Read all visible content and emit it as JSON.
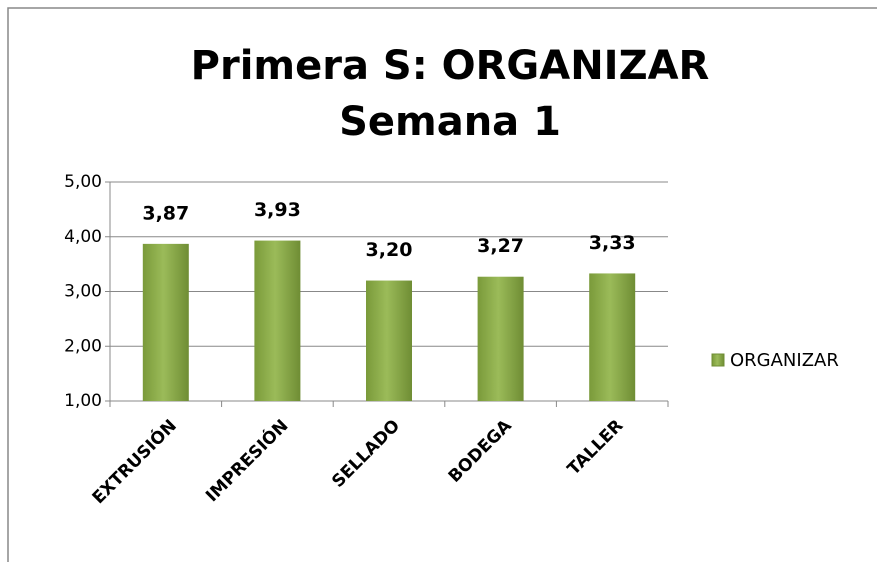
{
  "chart_data": {
    "type": "bar",
    "title": [
      "Primera S: ORGANIZAR",
      "Semana 1"
    ],
    "categories": [
      "EXTRUSIÓN",
      "IMPRESIÓN",
      "SELLADO",
      "BODEGA",
      "TALLER"
    ],
    "series": [
      {
        "name": "ORGANIZAR",
        "color": "#9bbb59",
        "values": [
          3.87,
          3.93,
          3.2,
          3.27,
          3.33
        ],
        "value_labels": [
          "3,87",
          "3,93",
          "3,20",
          "3,27",
          "3,33"
        ]
      }
    ],
    "ylim": [
      1,
      5
    ],
    "yticks": [
      {
        "value": 1,
        "label": "1,00"
      },
      {
        "value": 2,
        "label": "2,00"
      },
      {
        "value": 3,
        "label": "3,00"
      },
      {
        "value": 4,
        "label": "4,00"
      },
      {
        "value": 5,
        "label": "5,00"
      }
    ],
    "grid": true,
    "legend": "right"
  }
}
